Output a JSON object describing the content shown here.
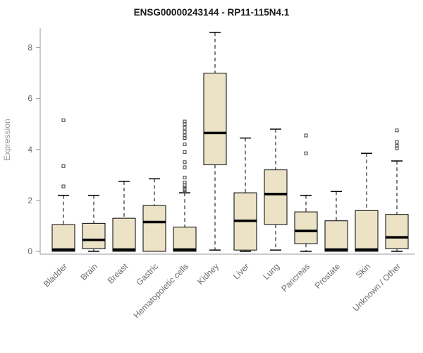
{
  "chart_data": {
    "type": "boxplot",
    "title": "ENSG00000243144 - RP11-115N4.1",
    "xlabel": "",
    "ylabel": "Expression",
    "ylim": [
      0,
      8.8
    ],
    "yticks": [
      0,
      2,
      4,
      6,
      8
    ],
    "grid": false,
    "legend": false,
    "box_fill": "#ece3c7",
    "box_stroke": "#000000",
    "median_color": "#000000",
    "whisker_style": "dashed",
    "outlier_shape": "open-square",
    "axis_color": "#999999",
    "label_color": "#6b6b6b",
    "categories": [
      "Bladder",
      "Brain",
      "Breast",
      "Gastric",
      "Hematopoietic cells",
      "Kidney",
      "Liver",
      "Lung",
      "Pancreas",
      "Prostate",
      "Skin",
      "Unknown / Other"
    ],
    "boxes": [
      {
        "category": "Bladder",
        "low": 0,
        "q1": 0,
        "median": 0.07,
        "q3": 1.05,
        "high": 2.2,
        "outliers": [
          2.55,
          3.35,
          5.15
        ]
      },
      {
        "category": "Brain",
        "low": 0,
        "q1": 0.1,
        "median": 0.45,
        "q3": 1.1,
        "high": 2.2,
        "outliers": []
      },
      {
        "category": "Breast",
        "low": 0,
        "q1": 0,
        "median": 0.07,
        "q3": 1.3,
        "high": 2.75,
        "outliers": []
      },
      {
        "category": "Gastric",
        "low": 0,
        "q1": 0,
        "median": 1.15,
        "q3": 1.8,
        "high": 2.85,
        "outliers": []
      },
      {
        "category": "Hematopoietic cells",
        "low": 0,
        "q1": 0,
        "median": 0.07,
        "q3": 0.95,
        "high": 2.3,
        "outliers": [
          2.4,
          2.45,
          2.5,
          2.6,
          2.7,
          2.9,
          3.3,
          3.5,
          3.9,
          4.2,
          4.45,
          4.55,
          4.7,
          4.85,
          5.0,
          5.1
        ]
      },
      {
        "category": "Kidney",
        "low": 0.05,
        "q1": 3.4,
        "median": 4.65,
        "q3": 7.0,
        "high": 8.6,
        "outliers": []
      },
      {
        "category": "Liver",
        "low": 0,
        "q1": 0.05,
        "median": 1.2,
        "q3": 2.3,
        "high": 4.45,
        "outliers": []
      },
      {
        "category": "Lung",
        "low": 0.05,
        "q1": 1.05,
        "median": 2.25,
        "q3": 3.2,
        "high": 4.8,
        "outliers": []
      },
      {
        "category": "Pancreas",
        "low": 0,
        "q1": 0.3,
        "median": 0.8,
        "q3": 1.55,
        "high": 2.2,
        "outliers": [
          3.85,
          4.55
        ]
      },
      {
        "category": "Prostate",
        "low": 0,
        "q1": 0,
        "median": 0.07,
        "q3": 1.2,
        "high": 2.35,
        "outliers": []
      },
      {
        "category": "Skin",
        "low": 0,
        "q1": 0,
        "median": 0.07,
        "q3": 1.6,
        "high": 3.85,
        "outliers": []
      },
      {
        "category": "Unknown / Other",
        "low": 0,
        "q1": 0.1,
        "median": 0.55,
        "q3": 1.45,
        "high": 3.55,
        "outliers": [
          4.05,
          4.15,
          4.3,
          4.75
        ]
      }
    ]
  }
}
